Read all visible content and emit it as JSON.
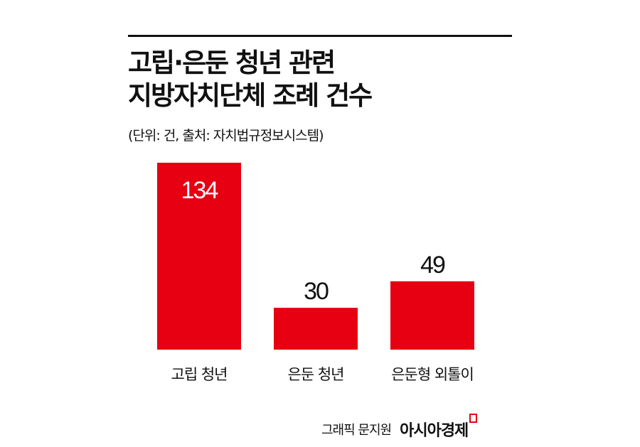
{
  "chart_data": {
    "type": "bar",
    "title": [
      "고립·은둔 청년 관련",
      "지방자치단체 조례 건수"
    ],
    "subtitle": "(단위: 건, 출처: 자치법규정보시스템)",
    "categories": [
      "고립 청년",
      "은둔 청년",
      "은둔형 외톨이"
    ],
    "values": [
      134,
      30,
      49
    ],
    "bar_color": "#e60012",
    "ylim": [
      0,
      134
    ],
    "grid": false,
    "data_labels": [
      "134",
      "30",
      "49"
    ]
  },
  "footer": {
    "credit": "그래픽 문지원",
    "brand": "아시아경제"
  }
}
